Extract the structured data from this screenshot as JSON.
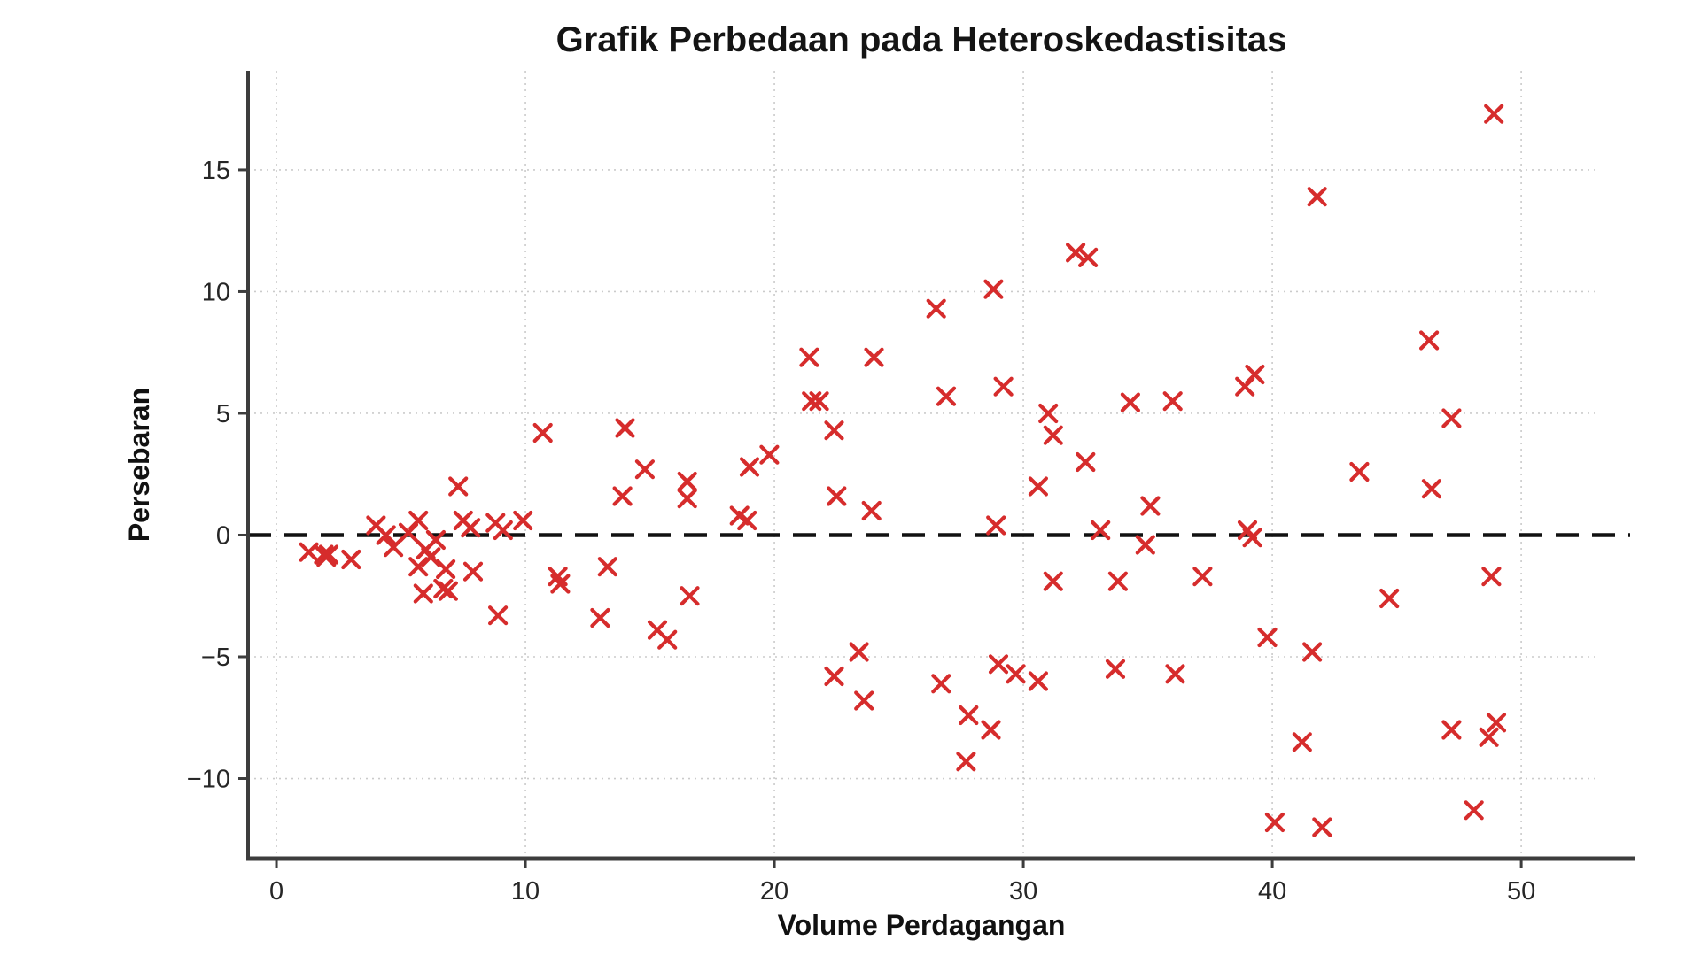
{
  "chart_data": {
    "type": "scatter",
    "title": "Grafik Perbedaan pada Heteroskedastisitas",
    "xlabel": "Volume Perdagangan",
    "ylabel": "Persebaran",
    "x_ticks": [
      0,
      10,
      20,
      30,
      40,
      50
    ],
    "y_ticks": [
      -10,
      -5,
      0,
      5,
      10,
      15
    ],
    "xlim": [
      -1.14,
      52.95
    ],
    "ylim": [
      -13.29,
      19.07
    ],
    "grid": true,
    "legend": "none",
    "zero_line": {
      "y": 0,
      "style": "dashed",
      "color": "#111111"
    },
    "marker": {
      "shape": "x",
      "color": "#d62c2c",
      "size": 18,
      "stroke_width": 4.2
    },
    "grid_color": "#cbcbcb",
    "spine_color": "#3d3d3d",
    "points": [
      [
        1.3,
        -0.7
      ],
      [
        1.9,
        -0.8
      ],
      [
        2.0,
        -0.9
      ],
      [
        2.1,
        -0.8
      ],
      [
        3.0,
        -1.0
      ],
      [
        4.0,
        0.4
      ],
      [
        4.4,
        0.0
      ],
      [
        4.7,
        -0.5
      ],
      [
        5.3,
        0.1
      ],
      [
        5.7,
        0.6
      ],
      [
        6.0,
        -0.6
      ],
      [
        6.2,
        -0.9
      ],
      [
        6.4,
        -0.2
      ],
      [
        5.7,
        -1.3
      ],
      [
        6.8,
        -1.4
      ],
      [
        7.9,
        -1.5
      ],
      [
        7.3,
        2.0
      ],
      [
        7.5,
        0.6
      ],
      [
        7.8,
        0.3
      ],
      [
        8.8,
        0.5
      ],
      [
        9.1,
        0.2
      ],
      [
        9.9,
        0.6
      ],
      [
        8.9,
        -3.3
      ],
      [
        5.9,
        -2.4
      ],
      [
        6.7,
        -2.2
      ],
      [
        6.9,
        -2.3
      ],
      [
        10.7,
        4.2
      ],
      [
        11.3,
        -1.7
      ],
      [
        11.4,
        -2.0
      ],
      [
        13.3,
        -1.3
      ],
      [
        13.0,
        -3.4
      ],
      [
        14.0,
        4.4
      ],
      [
        13.9,
        1.6
      ],
      [
        14.8,
        2.7
      ],
      [
        15.3,
        -3.9
      ],
      [
        15.7,
        -4.3
      ],
      [
        16.5,
        2.2
      ],
      [
        16.5,
        1.5
      ],
      [
        16.6,
        -2.5
      ],
      [
        18.6,
        0.8
      ],
      [
        18.9,
        0.6
      ],
      [
        19.0,
        2.8
      ],
      [
        19.8,
        3.3
      ],
      [
        21.4,
        7.3
      ],
      [
        24.0,
        7.3
      ],
      [
        21.5,
        5.5
      ],
      [
        21.8,
        5.5
      ],
      [
        22.4,
        4.3
      ],
      [
        22.5,
        1.6
      ],
      [
        23.9,
        1.0
      ],
      [
        22.4,
        -5.8
      ],
      [
        23.4,
        -4.8
      ],
      [
        23.6,
        -6.8
      ],
      [
        26.5,
        9.3
      ],
      [
        28.8,
        10.1
      ],
      [
        26.9,
        5.7
      ],
      [
        29.2,
        6.1
      ],
      [
        26.7,
        -6.1
      ],
      [
        27.8,
        -7.4
      ],
      [
        28.7,
        -8.0
      ],
      [
        27.7,
        -9.3
      ],
      [
        28.9,
        0.4
      ],
      [
        30.6,
        2.0
      ],
      [
        31.0,
        5.0
      ],
      [
        31.2,
        4.1
      ],
      [
        32.1,
        11.6
      ],
      [
        32.6,
        11.4
      ],
      [
        31.2,
        -1.9
      ],
      [
        29.0,
        -5.3
      ],
      [
        29.7,
        -5.7
      ],
      [
        30.6,
        -6.0
      ],
      [
        32.5,
        3.0
      ],
      [
        33.1,
        0.2
      ],
      [
        33.8,
        -1.9
      ],
      [
        33.7,
        -5.5
      ],
      [
        34.3,
        5.45
      ],
      [
        35.1,
        1.2
      ],
      [
        34.9,
        -0.4
      ],
      [
        36.0,
        5.5
      ],
      [
        36.1,
        -5.7
      ],
      [
        37.2,
        -1.7
      ],
      [
        38.9,
        6.1
      ],
      [
        39.3,
        6.6
      ],
      [
        39.0,
        0.2
      ],
      [
        39.2,
        -0.1
      ],
      [
        39.8,
        -4.2
      ],
      [
        40.1,
        -11.8
      ],
      [
        41.2,
        -8.5
      ],
      [
        41.6,
        -4.8
      ],
      [
        41.8,
        13.9
      ],
      [
        42.0,
        -12.0
      ],
      [
        43.5,
        2.6
      ],
      [
        44.7,
        -2.6
      ],
      [
        46.3,
        8.0
      ],
      [
        46.4,
        1.9
      ],
      [
        47.2,
        4.8
      ],
      [
        47.2,
        -8.0
      ],
      [
        48.1,
        -11.3
      ],
      [
        48.7,
        -8.3
      ],
      [
        49.0,
        -7.7
      ],
      [
        48.8,
        -1.7
      ],
      [
        48.9,
        17.3
      ]
    ]
  }
}
